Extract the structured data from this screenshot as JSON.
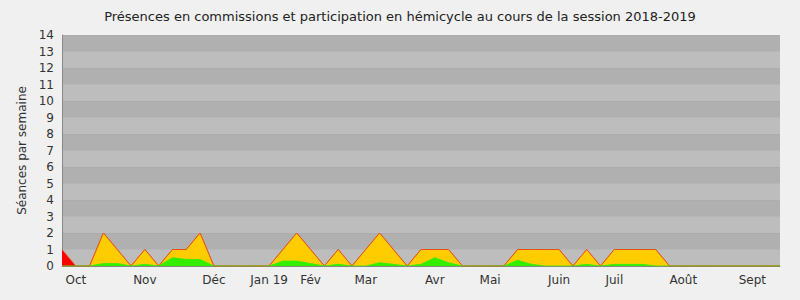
{
  "chart_data": {
    "type": "area",
    "title": "Présences en commissions et participation en hémicycle au cours de la session 2018-2019",
    "y_label": "Séances par semaine",
    "stacked": true,
    "grid": true,
    "categories": [
      null,
      "Oct",
      null,
      null,
      null,
      null,
      "Nov",
      null,
      null,
      null,
      null,
      "Déc",
      null,
      null,
      null,
      "Jan 19",
      null,
      null,
      "Fév",
      null,
      null,
      null,
      "Mar",
      null,
      null,
      null,
      null,
      "Avr",
      null,
      null,
      null,
      "Mai",
      null,
      null,
      null,
      null,
      "Juin",
      null,
      null,
      null,
      "Juil",
      null,
      null,
      null,
      null,
      "Août",
      null,
      null,
      null,
      null,
      "Sept",
      null,
      null
    ],
    "series": [
      {
        "color": "#33ee00",
        "values": [
          0,
          0,
          0,
          0.15,
          0.15,
          0,
          0.1,
          0,
          0.5,
          0.4,
          0.4,
          0,
          0,
          0,
          0,
          0,
          0.3,
          0.3,
          0.15,
          0,
          0.1,
          0,
          0,
          0.2,
          0.1,
          0,
          0.1,
          0.5,
          0.2,
          0,
          0,
          0,
          0,
          0.35,
          0.1,
          0,
          0,
          0,
          0.1,
          0,
          0.1,
          0.1,
          0.1,
          0,
          0,
          0,
          0,
          0,
          0,
          0,
          0,
          0,
          0
        ]
      },
      {
        "color": "#ffcc00",
        "values": [
          0,
          0,
          0,
          1.85,
          0.85,
          0,
          0.9,
          0,
          0.5,
          0.6,
          1.6,
          0,
          0,
          0,
          0,
          0,
          0.7,
          1.7,
          0.85,
          0,
          0.9,
          0,
          1,
          1.8,
          0.9,
          0,
          0.9,
          0.5,
          0.8,
          0,
          0,
          0,
          0,
          0.65,
          0.9,
          1,
          1,
          0,
          0.9,
          0,
          0.9,
          0.9,
          0.9,
          1,
          0,
          0,
          0,
          0,
          0,
          0,
          0,
          0,
          0
        ]
      },
      {
        "color": "#ff0000",
        "values": [
          1,
          0,
          0,
          0,
          0,
          0,
          0,
          0,
          0,
          0,
          0,
          0,
          0,
          0,
          0,
          0,
          0,
          0,
          0,
          0,
          0,
          0,
          0,
          0,
          0,
          0,
          0,
          0,
          0,
          0,
          0,
          0,
          0,
          0,
          0,
          0,
          0,
          0,
          0,
          0,
          0,
          0,
          0,
          0,
          0,
          0,
          0,
          0,
          0,
          0,
          0,
          0,
          0
        ]
      }
    ],
    "ylim": [
      0,
      14
    ],
    "yticks": [
      0,
      1,
      2,
      3,
      4,
      5,
      6,
      7,
      8,
      9,
      10,
      11,
      12,
      13,
      14
    ]
  }
}
